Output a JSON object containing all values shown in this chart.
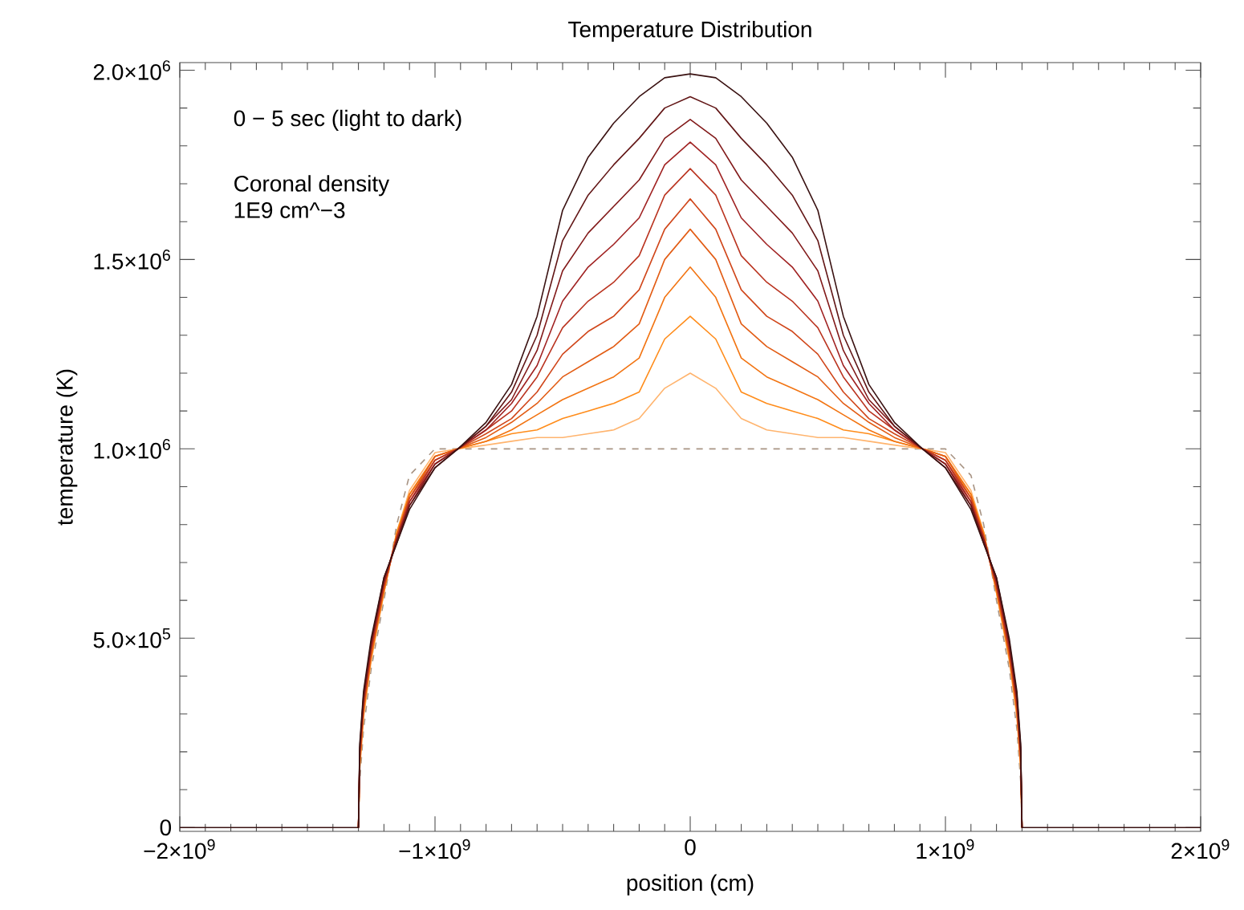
{
  "chart_data": {
    "type": "line",
    "title": "Temperature Distribution",
    "xlabel": "position (cm)",
    "ylabel": "temperature (K)",
    "annotations": [
      "0 − 5 sec (light to dark)",
      "Coronal density",
      "1E9 cm^−3"
    ],
    "x": [
      -2000000000.0,
      -1300000000.0,
      -1295000000.0,
      -1280000000.0,
      -1250000000.0,
      -1200000000.0,
      -1150000000.0,
      -1100000000.0,
      -1000000000.0,
      -910000000.0,
      -800000000.0,
      -700000000.0,
      -600000000.0,
      -500000000.0,
      -400000000.0,
      -300000000.0,
      -200000000.0,
      -100000000.0,
      0,
      100000000.0,
      200000000.0,
      300000000.0,
      400000000.0,
      500000000.0,
      600000000.0,
      700000000.0,
      800000000.0,
      910000000.0,
      1000000000.0,
      1100000000.0,
      1150000000.0,
      1200000000.0,
      1250000000.0,
      1280000000.0,
      1295000000.0,
      1300000000.0,
      2000000000.0
    ],
    "line_style": "solid",
    "series": [
      {
        "color": "#a89484",
        "line_style": "dashed",
        "values": [
          null,
          0,
          120000.0,
          260000.0,
          420000.0,
          600000.0,
          800000.0,
          930000.0,
          1000000.0,
          1000000.0,
          1000000.0,
          1000000.0,
          1000000.0,
          1000000.0,
          1000000.0,
          1000000.0,
          1000000.0,
          1000000.0,
          1000000.0,
          1000000.0,
          1000000.0,
          1000000.0,
          1000000.0,
          1000000.0,
          1000000.0,
          1000000.0,
          1000000.0,
          1000000.0,
          1000000.0,
          930000.0,
          800000.0,
          600000.0,
          420000.0,
          260000.0,
          120000.0,
          0,
          null
        ]
      },
      {
        "color": "#ffb46e",
        "values": [
          null,
          0,
          150000.0,
          290000.0,
          440000.0,
          620000.0,
          780000.0,
          890000.0,
          990000.0,
          1000000.0,
          1010000.0,
          1020000.0,
          1030000.0,
          1030000.0,
          1040000.0,
          1050000.0,
          1080000.0,
          1160000.0,
          1200000.0,
          1160000.0,
          1080000.0,
          1050000.0,
          1040000.0,
          1030000.0,
          1030000.0,
          1020000.0,
          1010000.0,
          1000000.0,
          990000.0,
          890000.0,
          780000.0,
          620000.0,
          440000.0,
          290000.0,
          150000.0,
          0,
          null
        ]
      },
      {
        "color": "#ff8c1a",
        "values": [
          null,
          0,
          160000.0,
          300000.0,
          450000.0,
          620000.0,
          780000.0,
          880000.0,
          980000.0,
          1000000.0,
          1020000.0,
          1040000.0,
          1050000.0,
          1080000.0,
          1100000.0,
          1120000.0,
          1150000.0,
          1290000.0,
          1350000.0,
          1290000.0,
          1150000.0,
          1120000.0,
          1100000.0,
          1080000.0,
          1050000.0,
          1040000.0,
          1020000.0,
          1000000.0,
          980000.0,
          880000.0,
          780000.0,
          620000.0,
          450000.0,
          300000.0,
          160000.0,
          0,
          null
        ]
      },
      {
        "color": "#f27412",
        "values": [
          null,
          0,
          170000.0,
          310000.0,
          450000.0,
          630000.0,
          770000.0,
          880000.0,
          980000.0,
          1000000.0,
          1020000.0,
          1050000.0,
          1090000.0,
          1130000.0,
          1160000.0,
          1190000.0,
          1240000.0,
          1400000.0,
          1480000.0,
          1400000.0,
          1240000.0,
          1190000.0,
          1160000.0,
          1130000.0,
          1090000.0,
          1050000.0,
          1020000.0,
          1000000.0,
          980000.0,
          880000.0,
          770000.0,
          630000.0,
          450000.0,
          310000.0,
          170000.0,
          0,
          null
        ]
      },
      {
        "color": "#e25c14",
        "values": [
          null,
          0,
          170000.0,
          310000.0,
          460000.0,
          630000.0,
          770000.0,
          870000.0,
          980000.0,
          1000000.0,
          1030000.0,
          1070000.0,
          1120000.0,
          1190000.0,
          1230000.0,
          1270000.0,
          1330000.0,
          1500000.0,
          1580000.0,
          1500000.0,
          1330000.0,
          1270000.0,
          1230000.0,
          1190000.0,
          1120000.0,
          1070000.0,
          1030000.0,
          1000000.0,
          980000.0,
          870000.0,
          770000.0,
          630000.0,
          460000.0,
          310000.0,
          170000.0,
          0,
          null
        ]
      },
      {
        "color": "#d0461a",
        "values": [
          null,
          0,
          180000.0,
          320000.0,
          470000.0,
          640000.0,
          770000.0,
          870000.0,
          970000.0,
          1000000.0,
          1040000.0,
          1080000.0,
          1150000.0,
          1250000.0,
          1310000.0,
          1350000.0,
          1420000.0,
          1580000.0,
          1660000.0,
          1580000.0,
          1420000.0,
          1350000.0,
          1310000.0,
          1250000.0,
          1150000.0,
          1080000.0,
          1040000.0,
          1000000.0,
          970000.0,
          870000.0,
          770000.0,
          640000.0,
          470000.0,
          320000.0,
          180000.0,
          0,
          null
        ]
      },
      {
        "color": "#ba3420",
        "values": [
          null,
          0,
          190000.0,
          330000.0,
          470000.0,
          640000.0,
          760000.0,
          860000.0,
          970000.0,
          1000000.0,
          1050000.0,
          1100000.0,
          1190000.0,
          1320000.0,
          1390000.0,
          1440000.0,
          1510000.0,
          1670000.0,
          1740000.0,
          1670000.0,
          1510000.0,
          1440000.0,
          1390000.0,
          1320000.0,
          1190000.0,
          1100000.0,
          1050000.0,
          1000000.0,
          970000.0,
          860000.0,
          760000.0,
          640000.0,
          470000.0,
          330000.0,
          190000.0,
          0,
          null
        ]
      },
      {
        "color": "#a02222",
        "values": [
          null,
          0,
          200000.0,
          340000.0,
          480000.0,
          650000.0,
          760000.0,
          860000.0,
          960000.0,
          1000000.0,
          1050000.0,
          1120000.0,
          1220000.0,
          1390000.0,
          1480000.0,
          1540000.0,
          1610000.0,
          1750000.0,
          1810000.0,
          1750000.0,
          1610000.0,
          1540000.0,
          1480000.0,
          1390000.0,
          1220000.0,
          1120000.0,
          1050000.0,
          1000000.0,
          960000.0,
          860000.0,
          760000.0,
          650000.0,
          480000.0,
          340000.0,
          200000.0,
          0,
          null
        ]
      },
      {
        "color": "#821a1a",
        "values": [
          null,
          0,
          200000.0,
          340000.0,
          490000.0,
          650000.0,
          760000.0,
          850000.0,
          960000.0,
          1000000.0,
          1060000.0,
          1130000.0,
          1260000.0,
          1470000.0,
          1570000.0,
          1640000.0,
          1710000.0,
          1820000.0,
          1870000.0,
          1820000.0,
          1710000.0,
          1640000.0,
          1570000.0,
          1470000.0,
          1260000.0,
          1130000.0,
          1060000.0,
          1000000.0,
          960000.0,
          850000.0,
          760000.0,
          650000.0,
          490000.0,
          340000.0,
          200000.0,
          0,
          null
        ]
      },
      {
        "color": "#621616",
        "values": [
          null,
          0,
          210000.0,
          350000.0,
          490000.0,
          660000.0,
          750000.0,
          850000.0,
          950000.0,
          1000000.0,
          1060000.0,
          1150000.0,
          1300000.0,
          1550000.0,
          1670000.0,
          1750000.0,
          1820000.0,
          1900000.0,
          1930000.0,
          1900000.0,
          1820000.0,
          1750000.0,
          1670000.0,
          1550000.0,
          1300000.0,
          1150000.0,
          1060000.0,
          1000000.0,
          950000.0,
          850000.0,
          750000.0,
          660000.0,
          490000.0,
          350000.0,
          210000.0,
          0,
          null
        ]
      },
      {
        "color": "#3a1212",
        "values": [
          0,
          0,
          220000.0,
          360000.0,
          500000.0,
          660000.0,
          750000.0,
          840000.0,
          950000.0,
          1000000.0,
          1070000.0,
          1170000.0,
          1350000.0,
          1630000.0,
          1770000.0,
          1860000.0,
          1930000.0,
          1980000.0,
          1990000.0,
          1980000.0,
          1930000.0,
          1860000.0,
          1770000.0,
          1630000.0,
          1350000.0,
          1170000.0,
          1070000.0,
          1000000.0,
          950000.0,
          840000.0,
          750000.0,
          660000.0,
          500000.0,
          360000.0,
          220000.0,
          0,
          0
        ]
      }
    ],
    "xlim": [
      -2000000000.0,
      2000000000.0
    ],
    "ylim": [
      -10000.0,
      2020000.0
    ],
    "xticks": [
      {
        "value": -2000000000.0,
        "label": "−2×10$^{9}$"
      },
      {
        "value": -1000000000.0,
        "label": "−1×10$^{9}$"
      },
      0,
      {
        "value": 1000000000.0,
        "label": "1×10$^{9}$"
      },
      {
        "value": 2000000000.0,
        "label": "2×10$^{9}$"
      }
    ],
    "yticks": [
      0,
      {
        "value": 500000.0,
        "label": "5.0×10$^{5}$"
      },
      {
        "value": 1000000.0,
        "label": "1.0×10$^{6}$"
      },
      {
        "value": 1500000.0,
        "label": "1.5×10$^{6}$"
      },
      {
        "value": 2000000.0,
        "label": "2.0×10$^{6}$"
      }
    ]
  }
}
